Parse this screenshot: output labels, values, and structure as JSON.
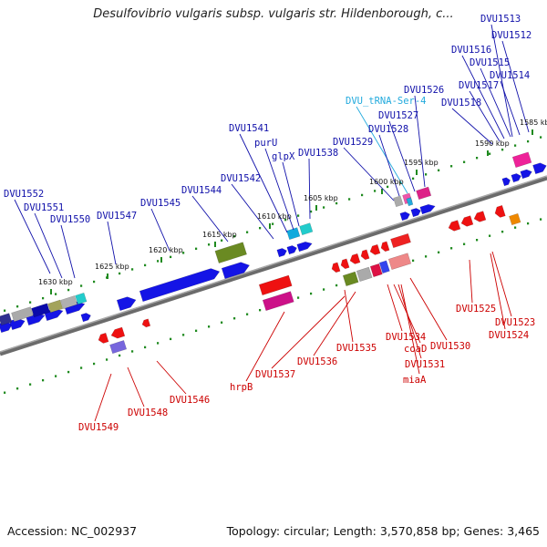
{
  "title": "Desulfovibrio vulgaris subsp. vulgaris str. Hildenborough, c...",
  "footer": {
    "accession": "Accession: NC_002937",
    "summary": "Topology: circular; Length: 3,570,858 bp; Genes: 3,465"
  },
  "colors": {
    "forward": "#0000dd",
    "reverse": "#dd0000",
    "trna": "#22aadd",
    "backbone": "#888888",
    "tick": "#228822"
  },
  "kbp_labels": [
    "1585 kbp",
    "1590 kbp",
    "1595 kbp",
    "1600 kbp",
    "1605 kbp",
    "1610 kbp",
    "1615 kbp",
    "1620 kbp",
    "1625 kbp",
    "1630 kbp"
  ],
  "top_labels": [
    "DVU1513",
    "DVU1512",
    "DVU1516",
    "DVU1515",
    "DVU1514",
    "DVU1517",
    "DVU1526",
    "DVU_tRNA-Ser-4",
    "DVU1518",
    "DVU1527",
    "DVU1528",
    "DVU1529",
    "DVU1541",
    "purU",
    "glpX",
    "DVU1538",
    "DVU1542",
    "DVU1544",
    "DVU1545",
    "DVU1547",
    "DVU1552",
    "DVU1551",
    "DVU1550"
  ],
  "bottom_labels": [
    "DVU1525",
    "DVU1523",
    "DVU1524",
    "DVU1530",
    "DVU1535",
    "DVU1534",
    "coaD",
    "DVU1531",
    "miaA",
    "DVU1536",
    "DVU1537",
    "hrpB",
    "DVU1546",
    "DVU1548",
    "DVU1549"
  ]
}
